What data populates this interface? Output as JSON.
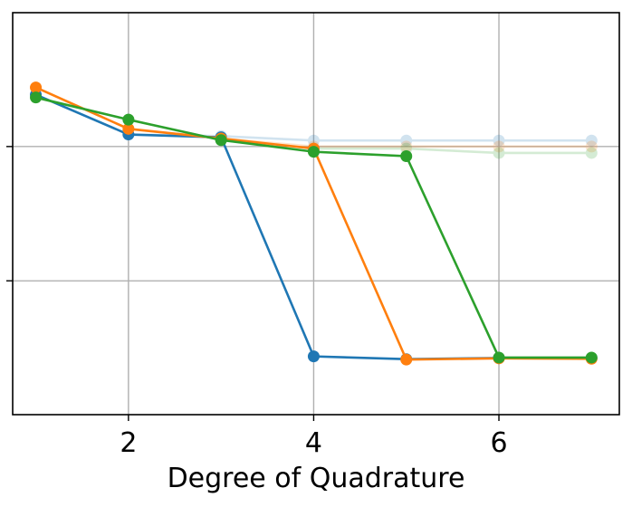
{
  "chart_data": {
    "type": "line",
    "title": "",
    "xlabel": "Degree of Quadrature",
    "ylabel": "",
    "x": [
      1,
      2,
      3,
      4,
      5,
      6,
      7
    ],
    "xlim": [
      0.75,
      7.3
    ],
    "ylim": [
      0,
      1
    ],
    "xticks": [
      2,
      4,
      6
    ],
    "xtick_labels": [
      "2",
      "4",
      "6"
    ],
    "yticks": [
      0.333,
      0.667
    ],
    "grid": true,
    "legend": "none",
    "series": [
      {
        "color": "#1f77b4",
        "opacity": 1,
        "values": [
          0.796,
          0.697,
          0.69,
          0.145,
          0.138,
          0.141,
          0.141
        ]
      },
      {
        "color": "#ff7f0e",
        "opacity": 1,
        "values": [
          0.814,
          0.711,
          0.687,
          0.662,
          0.137,
          0.14,
          0.139
        ]
      },
      {
        "color": "#2ca02c",
        "opacity": 1,
        "values": [
          0.789,
          0.734,
          0.683,
          0.654,
          0.643,
          0.142,
          0.142
        ]
      },
      {
        "color": "#1f77b4",
        "opacity": 0.2,
        "values": [
          0.796,
          0.697,
          0.693,
          0.682,
          0.682,
          0.682,
          0.682
        ]
      },
      {
        "color": "#ff7f0e",
        "opacity": 0.2,
        "values": [
          0.814,
          0.711,
          0.687,
          0.667,
          0.667,
          0.667,
          0.667
        ]
      },
      {
        "color": "#2ca02c",
        "opacity": 0.2,
        "values": [
          0.789,
          0.734,
          0.683,
          0.662,
          0.662,
          0.651,
          0.651
        ]
      }
    ]
  }
}
